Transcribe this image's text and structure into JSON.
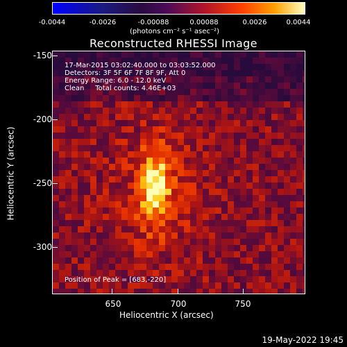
{
  "colorbar": {
    "ticks": [
      "-0.0044",
      "-0.0026",
      "-0.00088",
      "0.00088",
      "0.0026",
      "0.0044"
    ],
    "unit": "(photons cm⁻² s⁻¹ asec⁻²)"
  },
  "title": "Reconstructed RHESSI Image",
  "info": {
    "time": "17-Mar-2015 03:02:40.000 to 03:03:52.000",
    "detectors": "Detectors: 3F 5F 6F 7F 8F 9F, Att 0",
    "energy": "Energy Range: 6.0 - 12.0 keV",
    "clean": "Clean     Total counts: 4.46E+03",
    "peak": "Position of Peak = [683,-220]"
  },
  "axes": {
    "xlabel": "Heliocentric X (arcsec)",
    "ylabel": "Heliocentric Y (arcsec)",
    "xticks": [
      "650",
      "700",
      "750"
    ],
    "yticks": [
      "-150",
      "-200",
      "-250",
      "-300"
    ]
  },
  "timestamp": "19-May-2022 19:45"
}
